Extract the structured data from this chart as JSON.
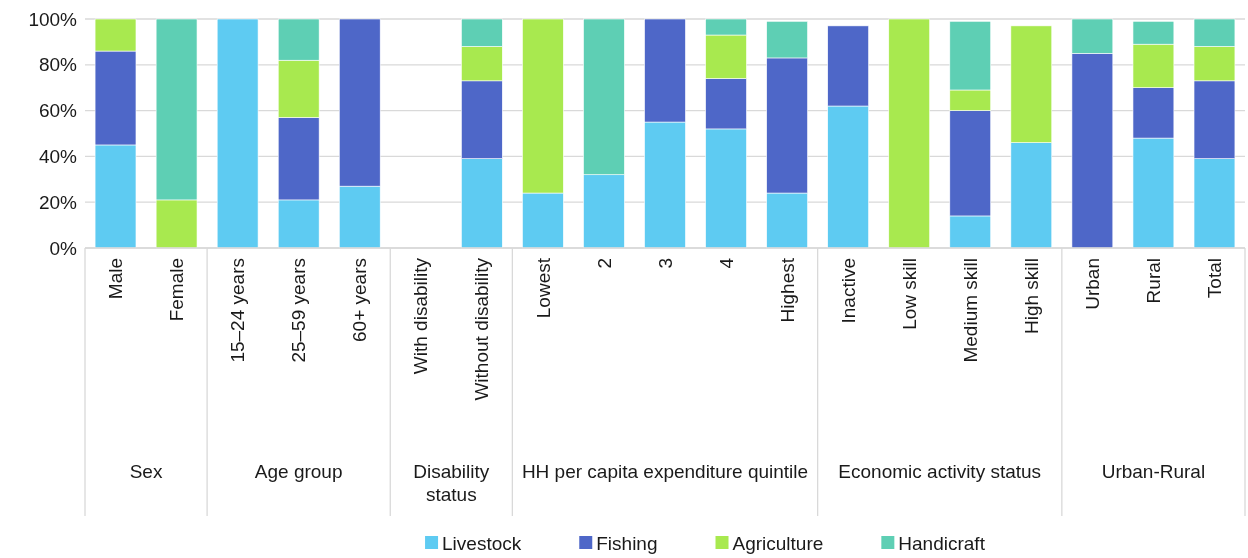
{
  "chart_data": {
    "type": "bar",
    "stacked": true,
    "categories": [
      "Male",
      "Female",
      "15–24 years",
      "25–59 years",
      "60+ years",
      "With disability",
      "Without disability",
      "Lowest",
      "2",
      "3",
      "4",
      "Highest",
      "Inactive",
      "Low skill",
      "Medium skill",
      "High skill",
      "Urban",
      "Rural",
      "Total"
    ],
    "series": [
      {
        "name": "Livestock",
        "color": "#5ecbf2",
        "values": [
          45,
          0,
          100,
          21,
          27,
          null,
          39,
          24,
          32,
          55,
          52,
          24,
          62,
          0,
          14,
          46,
          0,
          48,
          39
        ]
      },
      {
        "name": "Fishing",
        "color": "#4e67c8",
        "values": [
          41,
          0,
          0,
          36,
          73,
          null,
          34,
          0,
          0,
          45,
          22,
          59,
          35,
          0,
          46,
          0,
          85,
          22,
          34
        ]
      },
      {
        "name": "Agriculture",
        "color": "#a8e94f",
        "values": [
          14,
          21,
          0,
          25,
          0,
          null,
          15,
          76,
          0,
          0,
          19,
          0,
          0,
          100,
          9,
          51,
          0,
          19,
          15
        ]
      },
      {
        "name": "Handicraft",
        "color": "#5ecfb4",
        "values": [
          0,
          79,
          0,
          18,
          0,
          null,
          12,
          0,
          68,
          0,
          7,
          16,
          0,
          0,
          30,
          0,
          15,
          10,
          12
        ]
      }
    ],
    "ylim": [
      0,
      100
    ],
    "yticks": [
      {
        "value": 0,
        "label": "0%"
      },
      {
        "value": 20,
        "label": "20%"
      },
      {
        "value": 40,
        "label": "40%"
      },
      {
        "value": 60,
        "label": "60%"
      },
      {
        "value": 80,
        "label": "80%"
      },
      {
        "value": 100,
        "label": "100%"
      }
    ],
    "grid": "y",
    "legend": "bottom",
    "annotations": [
      "Sex",
      "Age group",
      "Disability status",
      "HH per capita expenditure quintile",
      "Economic activity status",
      "Urban-Rural"
    ]
  }
}
